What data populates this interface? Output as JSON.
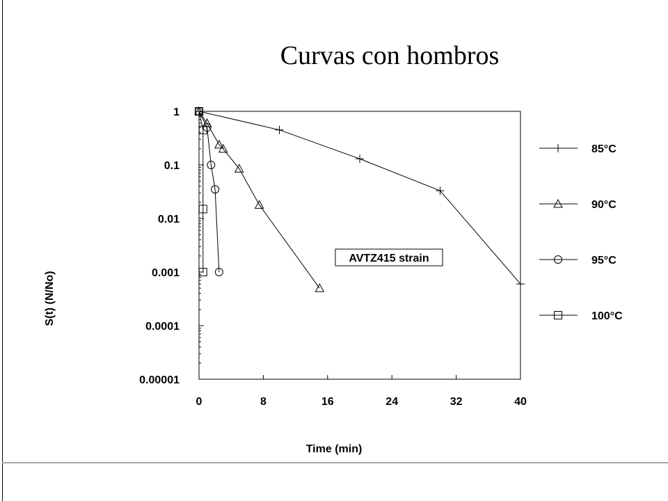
{
  "chart_data": {
    "type": "scatter",
    "title": "Curvas con hombros",
    "xlabel": "Time (min)",
    "ylabel": "S(t)  (N/No)",
    "xlim": [
      0,
      40
    ],
    "ylim": [
      1e-05,
      1
    ],
    "y_scale": "log",
    "x_ticks": [
      0,
      8,
      16,
      24,
      32,
      40
    ],
    "x_tick_labels": [
      "0",
      "8",
      "16",
      "24",
      "32",
      "40"
    ],
    "y_ticks": [
      1,
      0.1,
      0.01,
      0.001,
      0.0001,
      1e-05
    ],
    "y_tick_labels": [
      "1",
      "0.1",
      "0.01",
      "0.001",
      "0.0001",
      "0.00001"
    ],
    "grid": false,
    "legend_position": "right",
    "annotation": "AVTZ415 strain",
    "series": [
      {
        "name": "85°C",
        "marker": "plus",
        "x": [
          0,
          10,
          20,
          30,
          40
        ],
        "y": [
          1,
          0.45,
          0.13,
          0.033,
          0.0006
        ]
      },
      {
        "name": "90°C",
        "marker": "triangle",
        "x": [
          0,
          1,
          2.5,
          3,
          5,
          7.5,
          15
        ],
        "y": [
          1,
          0.6,
          0.24,
          0.2,
          0.085,
          0.018,
          0.0005
        ]
      },
      {
        "name": "95°C",
        "marker": "circle",
        "x": [
          0,
          1,
          1.5,
          2,
          2.5
        ],
        "y": [
          1,
          0.5,
          0.1,
          0.035,
          0.001
        ]
      },
      {
        "name": "100°C",
        "marker": "square",
        "x": [
          0,
          0.5,
          0.5,
          0.5
        ],
        "y": [
          1,
          0.45,
          0.015,
          0.001
        ]
      }
    ]
  }
}
